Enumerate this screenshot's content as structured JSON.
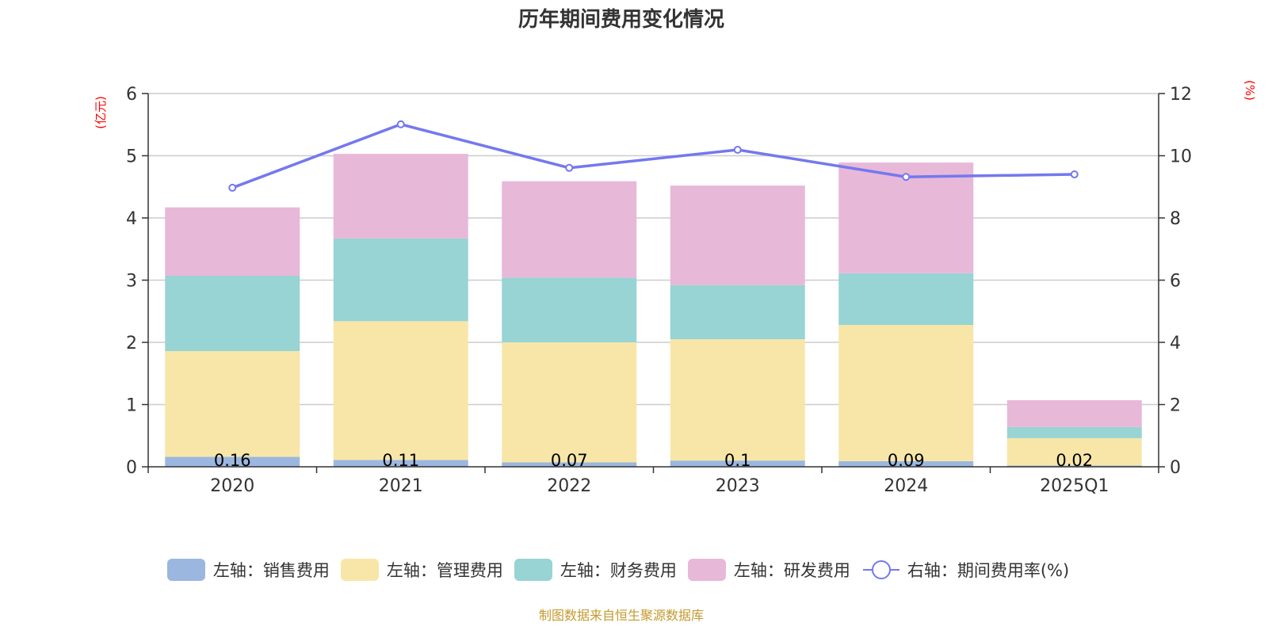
{
  "chart_data": {
    "type": "bar",
    "title": "历年期间费用变化情况",
    "categories": [
      "2020",
      "2021",
      "2022",
      "2023",
      "2024",
      "2025Q1"
    ],
    "series": [
      {
        "name": "左轴：销售费用",
        "axis": "left",
        "type": "bar",
        "color": "#9bb7e0",
        "values": [
          0.16,
          0.11,
          0.07,
          0.1,
          0.09,
          0.02
        ],
        "labels": [
          "0.16",
          "0.11",
          "0.07",
          "0.1",
          "0.09",
          "0.02"
        ]
      },
      {
        "name": "左轴：管理费用",
        "axis": "left",
        "type": "bar",
        "color": "#f8e6a8",
        "values": [
          1.7,
          2.23,
          1.93,
          1.95,
          2.19,
          0.44
        ]
      },
      {
        "name": "左轴：财务费用",
        "axis": "left",
        "type": "bar",
        "color": "#98d4d4",
        "values": [
          1.21,
          1.33,
          1.04,
          0.87,
          0.83,
          0.18
        ]
      },
      {
        "name": "左轴：研发费用",
        "axis": "left",
        "type": "bar",
        "color": "#e8b8d8",
        "values": [
          1.1,
          1.36,
          1.55,
          1.6,
          1.78,
          0.43
        ]
      },
      {
        "name": "右轴：期间费用率(%)",
        "axis": "right",
        "type": "line",
        "color": "#7478ee",
        "values": [
          8.97,
          11.01,
          9.61,
          10.19,
          9.32,
          9.4
        ]
      }
    ],
    "left_axis": {
      "label": "(亿元)",
      "min": 0,
      "max": 6,
      "ticks": [
        "0",
        "1",
        "2",
        "3",
        "4",
        "5",
        "6"
      ]
    },
    "right_axis": {
      "label": "(%)",
      "min": 0,
      "max": 12,
      "ticks": [
        "0",
        "2",
        "4",
        "6",
        "8",
        "10",
        "12"
      ]
    },
    "grid": true,
    "legend_position": "bottom",
    "axis_label_color": "#ff0000"
  },
  "source": "制图数据来自恒生聚源数据库"
}
